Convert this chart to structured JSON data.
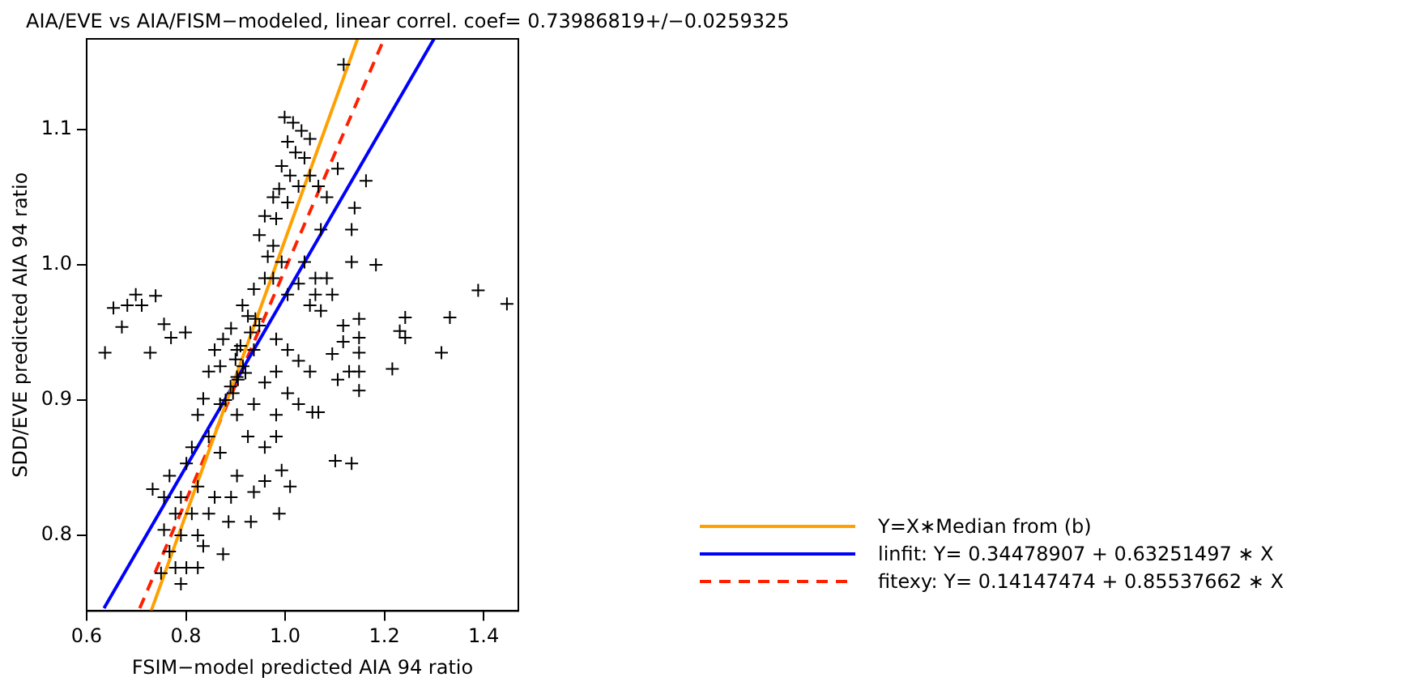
{
  "chart_data": {
    "type": "scatter",
    "title": "AIA/EVE vs AIA/FISM−modeled, linear correl. coef= 0.73986819+/−0.0259325",
    "xlabel": "FSIM−model predicted AIA 94 ratio",
    "ylabel": "SDD/EVE predicted AIA 94 ratio",
    "xlim": [
      0.6,
      1.47
    ],
    "ylim": [
      0.744,
      1.167
    ],
    "xticks": [
      {
        "value": 0.6,
        "label": "0.6"
      },
      {
        "value": 0.8,
        "label": "0.8"
      },
      {
        "value": 1.0,
        "label": "1.0"
      },
      {
        "value": 1.2,
        "label": "1.2"
      },
      {
        "value": 1.4,
        "label": "1.4"
      }
    ],
    "yticks": [
      {
        "value": 0.8,
        "label": "0.8"
      },
      {
        "value": 0.9,
        "label": "0.9"
      },
      {
        "value": 1.0,
        "label": "1.0"
      },
      {
        "value": 1.1,
        "label": "1.1"
      }
    ],
    "grid": false,
    "legend": "bottom right",
    "series": [
      {
        "marker": "cross",
        "color": "#000000",
        "x": [
          0.637,
          0.654,
          0.671,
          0.682,
          0.699,
          0.711,
          0.739,
          0.728,
          0.756,
          0.77,
          0.799,
          1.389,
          1.447,
          1.332,
          1.315,
          1.242,
          1.231,
          1.242,
          1.216,
          1.183,
          1.134,
          1.149,
          1.149,
          1.149,
          1.149,
          1.149,
          1.129,
          1.106,
          1.095,
          1.117,
          1.117,
          1.101,
          1.134,
          1.055,
          1.067,
          0.988,
          0.931,
          0.875,
          1.01,
          0.999,
          1.016,
          1.033,
          1.05,
          1.005,
          1.021,
          1.039,
          0.993,
          1.01,
          1.027,
          0.988,
          1.05,
          1.067,
          0.976,
          1.005,
          1.118,
          1.163,
          1.14,
          1.134,
          1.084,
          1.106,
          1.072,
          0.982,
          0.959,
          0.948,
          0.976,
          0.965,
          0.993,
          1.039,
          1.061,
          1.027,
          1.061,
          1.084,
          1.095,
          1.072,
          1.05,
          1.005,
          0.976,
          0.959,
          0.937,
          0.914,
          0.925,
          0.948,
          0.891,
          0.875,
          0.858,
          0.903,
          0.937,
          0.982,
          1.005,
          1.027,
          1.05,
          0.982,
          0.959,
          1.005,
          1.027,
          0.982,
          0.937,
          0.903,
          0.869,
          0.846,
          0.835,
          0.824,
          0.869,
          0.903,
          0.925,
          0.959,
          0.982,
          0.993,
          0.959,
          0.937,
          0.903,
          0.869,
          0.846,
          0.812,
          0.801,
          0.767,
          0.733,
          0.756,
          0.79,
          0.824,
          0.858,
          0.891,
          0.779,
          0.812,
          0.846,
          0.756,
          0.79,
          0.824,
          0.767,
          0.801,
          0.835,
          0.779,
          0.824,
          0.75,
          0.79,
          0.886,
          0.9,
          0.91,
          0.92,
          0.89,
          0.88,
          0.93,
          0.94,
          0.915,
          0.895,
          0.905
        ],
        "values": [
          0.935,
          0.968,
          0.954,
          0.97,
          0.978,
          0.97,
          0.977,
          0.935,
          0.956,
          0.946,
          0.95,
          0.981,
          0.971,
          0.961,
          0.935,
          0.961,
          0.951,
          0.946,
          0.923,
          1.0,
          1.002,
          0.96,
          0.946,
          0.935,
          0.921,
          0.907,
          0.921,
          0.915,
          0.934,
          0.943,
          0.955,
          0.855,
          0.853,
          0.891,
          0.891,
          0.816,
          0.81,
          0.786,
          0.836,
          1.109,
          1.105,
          1.099,
          1.093,
          1.091,
          1.083,
          1.079,
          1.073,
          1.066,
          1.058,
          1.056,
          1.066,
          1.058,
          1.05,
          1.046,
          1.148,
          1.062,
          1.042,
          1.026,
          1.05,
          1.071,
          1.026,
          1.034,
          1.036,
          1.022,
          1.014,
          1.006,
          1.002,
          1.002,
          0.99,
          0.986,
          0.978,
          0.99,
          0.978,
          0.966,
          0.97,
          0.978,
          0.99,
          0.99,
          0.982,
          0.97,
          0.962,
          0.955,
          0.953,
          0.945,
          0.937,
          0.937,
          0.937,
          0.945,
          0.937,
          0.929,
          0.921,
          0.921,
          0.913,
          0.905,
          0.897,
          0.889,
          0.897,
          0.917,
          0.925,
          0.921,
          0.901,
          0.889,
          0.897,
          0.889,
          0.873,
          0.865,
          0.873,
          0.848,
          0.84,
          0.832,
          0.844,
          0.861,
          0.873,
          0.865,
          0.853,
          0.844,
          0.834,
          0.828,
          0.828,
          0.836,
          0.828,
          0.828,
          0.816,
          0.816,
          0.816,
          0.804,
          0.8,
          0.8,
          0.788,
          0.776,
          0.792,
          0.776,
          0.776,
          0.772,
          0.764,
          0.81,
          0.93,
          0.94,
          0.92,
          0.91,
          0.9,
          0.95,
          0.96,
          0.925,
          0.905,
          0.915
        ]
      },
      {
        "type": "line",
        "name": "Y=X∗Median from (b)",
        "color": "#ffa000",
        "line_style": "solid",
        "x": [
          0.73,
          1.146
        ],
        "values": [
          0.744,
          1.167
        ]
      },
      {
        "type": "line",
        "name": "linfit: Y= 0.34478907 + 0.63251497 ∗ X",
        "color": "#0000ff",
        "line_style": "solid",
        "x": [
          0.635,
          1.3
        ],
        "values": [
          0.746,
          1.167
        ]
      },
      {
        "type": "line",
        "name": "fitexy: Y= 0.14147474 + 0.85537662 ∗ X",
        "color": "#ff2000",
        "line_style": "dashed",
        "x": [
          0.707,
          1.197
        ],
        "values": [
          0.746,
          1.165
        ]
      }
    ]
  }
}
